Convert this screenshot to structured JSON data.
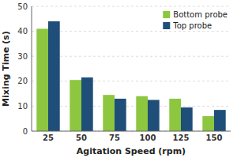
{
  "chart_data": {
    "type": "bar",
    "categories": [
      "25",
      "50",
      "75",
      "100",
      "125",
      "150"
    ],
    "series": [
      {
        "name": "Bottom probe",
        "color": "#8DC63F",
        "values": [
          41.0,
          20.5,
          14.5,
          14.0,
          13.0,
          6.0
        ]
      },
      {
        "name": "Top probe",
        "color": "#1F4E79",
        "values": [
          44.0,
          21.5,
          13.0,
          12.5,
          9.5,
          8.5
        ]
      }
    ],
    "xlabel": "Agitation Speed (rpm)",
    "ylabel": "Mixing Time (s)",
    "ylim": [
      0,
      50
    ],
    "yticks": [
      0,
      10,
      20,
      30,
      40,
      50
    ],
    "grid": true,
    "legend": "upper right"
  }
}
